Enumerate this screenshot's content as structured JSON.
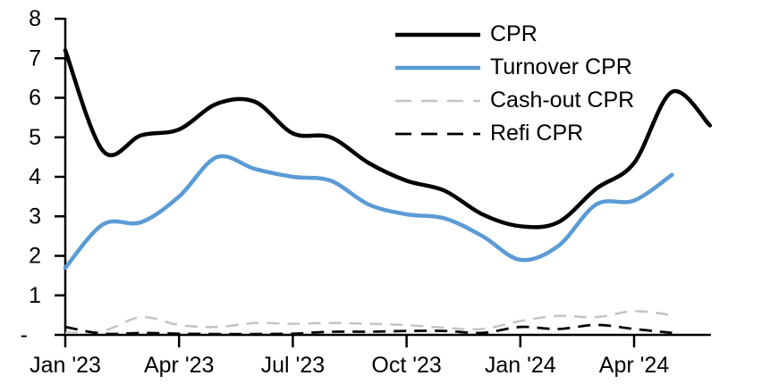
{
  "chart_data": {
    "type": "line",
    "smoothed": true,
    "grid": false,
    "legend_position": "top-right",
    "x": [
      "Jan '23",
      "Feb '23",
      "Mar '23",
      "Apr '23",
      "May '23",
      "Jun '23",
      "Jul '23",
      "Aug '23",
      "Sep '23",
      "Oct '23",
      "Nov '23",
      "Dec '23",
      "Jan '24",
      "Feb '24",
      "Mar '24",
      "Apr '24",
      "May '24",
      "Jun '24"
    ],
    "x_tick_labels": [
      "Jan '23",
      "Apr '23",
      "Jul '23",
      "Oct '23",
      "Jan '24",
      "Apr '24"
    ],
    "x_tick_every": 3,
    "ylim": [
      0,
      8
    ],
    "y_tick_labels": [
      "-",
      "1",
      "2",
      "3",
      "4",
      "5",
      "6",
      "7",
      "8"
    ],
    "xlabel": "",
    "ylabel": "",
    "title": "",
    "series": [
      {
        "name": "CPR",
        "color": "#000000",
        "style": "solid",
        "width": 4.5,
        "values": [
          7.2,
          4.65,
          5.05,
          5.2,
          5.85,
          5.9,
          5.1,
          5.0,
          4.35,
          3.9,
          3.65,
          3.05,
          2.75,
          2.85,
          3.7,
          4.35,
          6.15,
          5.3
        ]
      },
      {
        "name": "Turnover CPR",
        "color": "#5B9BD5",
        "style": "solid",
        "width": 4.5,
        "values": [
          1.7,
          2.8,
          2.85,
          3.5,
          4.5,
          4.2,
          4.0,
          3.9,
          3.3,
          3.05,
          2.95,
          2.5,
          1.9,
          2.25,
          3.3,
          3.4,
          4.05,
          null
        ]
      },
      {
        "name": "Cash-out CPR",
        "color": "#C4C4C4",
        "style": "dashed",
        "width": 2.5,
        "values": [
          0.05,
          0.1,
          0.45,
          0.25,
          0.2,
          0.3,
          0.28,
          0.3,
          0.28,
          0.25,
          0.18,
          0.15,
          0.35,
          0.48,
          0.45,
          0.6,
          0.5,
          null
        ]
      },
      {
        "name": "Refi CPR",
        "color": "#000000",
        "style": "dashed",
        "width": 2.75,
        "values": [
          0.2,
          0.03,
          0.05,
          0.03,
          0.02,
          0.02,
          0.03,
          0.08,
          0.08,
          0.1,
          0.1,
          0.05,
          0.2,
          0.15,
          0.25,
          0.15,
          0.05,
          null
        ]
      }
    ]
  }
}
